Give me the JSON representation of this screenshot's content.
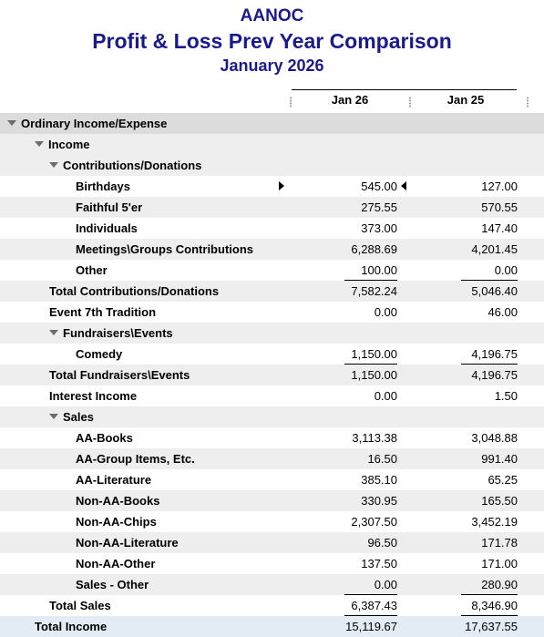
{
  "report": {
    "company": "AANOC",
    "title": "Profit & Loss Prev Year Comparison",
    "period": "January 2026",
    "columns": [
      "Jan 26",
      "Jan 25"
    ]
  },
  "rows": [
    {
      "label": "Ordinary Income/Expense",
      "indent": 0,
      "expander": true,
      "style": "band-dark",
      "v1": "",
      "v2": ""
    },
    {
      "label": "Income",
      "indent": 1,
      "expander": true,
      "style": "band",
      "v1": "",
      "v2": ""
    },
    {
      "label": "Contributions/Donations",
      "indent": 2,
      "expander": true,
      "style": "band",
      "v1": "",
      "v2": ""
    },
    {
      "label": "Birthdays",
      "indent": 3,
      "style": "",
      "v1": "545.00",
      "v2": "127.00",
      "selected": true
    },
    {
      "label": "Faithful 5'er",
      "indent": 3,
      "style": "band",
      "v1": "275.55",
      "v2": "570.55"
    },
    {
      "label": "Individuals",
      "indent": 3,
      "style": "",
      "v1": "373.00",
      "v2": "147.40"
    },
    {
      "label": "Meetings\\Groups Contributions",
      "indent": 3,
      "style": "band",
      "v1": "6,288.69",
      "v2": "4,201.45"
    },
    {
      "label": "Other",
      "indent": 3,
      "style": "",
      "v1": "100.00",
      "v2": "0.00",
      "ul": true
    },
    {
      "label": "Total Contributions/Donations",
      "indent": 2,
      "style": "band",
      "v1": "7,582.24",
      "v2": "5,046.40"
    },
    {
      "label": "Event 7th Tradition",
      "indent": 2,
      "style": "",
      "v1": "0.00",
      "v2": "46.00"
    },
    {
      "label": "Fundraisers\\Events",
      "indent": 2,
      "expander": true,
      "style": "band",
      "v1": "",
      "v2": ""
    },
    {
      "label": "Comedy",
      "indent": 3,
      "style": "",
      "v1": "1,150.00",
      "v2": "4,196.75",
      "ul": true
    },
    {
      "label": "Total Fundraisers\\Events",
      "indent": 2,
      "style": "band",
      "v1": "1,150.00",
      "v2": "4,196.75"
    },
    {
      "label": "Interest Income",
      "indent": 2,
      "style": "",
      "v1": "0.00",
      "v2": "1.50"
    },
    {
      "label": "Sales",
      "indent": 2,
      "expander": true,
      "style": "band",
      "v1": "",
      "v2": ""
    },
    {
      "label": "AA-Books",
      "indent": 3,
      "style": "",
      "v1": "3,113.38",
      "v2": "3,048.88"
    },
    {
      "label": "AA-Group Items, Etc.",
      "indent": 3,
      "style": "band",
      "v1": "16.50",
      "v2": "991.40"
    },
    {
      "label": "AA-Literature",
      "indent": 3,
      "style": "",
      "v1": "385.10",
      "v2": "65.25"
    },
    {
      "label": "Non-AA-Books",
      "indent": 3,
      "style": "band",
      "v1": "330.95",
      "v2": "165.50"
    },
    {
      "label": "Non-AA-Chips",
      "indent": 3,
      "style": "",
      "v1": "2,307.50",
      "v2": "3,452.19"
    },
    {
      "label": "Non-AA-Literature",
      "indent": 3,
      "style": "band",
      "v1": "96.50",
      "v2": "171.78"
    },
    {
      "label": "Non-AA-Other",
      "indent": 3,
      "style": "",
      "v1": "137.50",
      "v2": "171.00"
    },
    {
      "label": "Sales - Other",
      "indent": 3,
      "style": "band",
      "v1": "0.00",
      "v2": "280.90",
      "ul": true
    },
    {
      "label": "Total Sales",
      "indent": 2,
      "style": "",
      "v1": "6,387.43",
      "v2": "8,346.90",
      "ul": true
    },
    {
      "label": "Total Income",
      "indent": 1,
      "style": "total-blue",
      "v1": "15,119.67",
      "v2": "17,637.55"
    }
  ]
}
